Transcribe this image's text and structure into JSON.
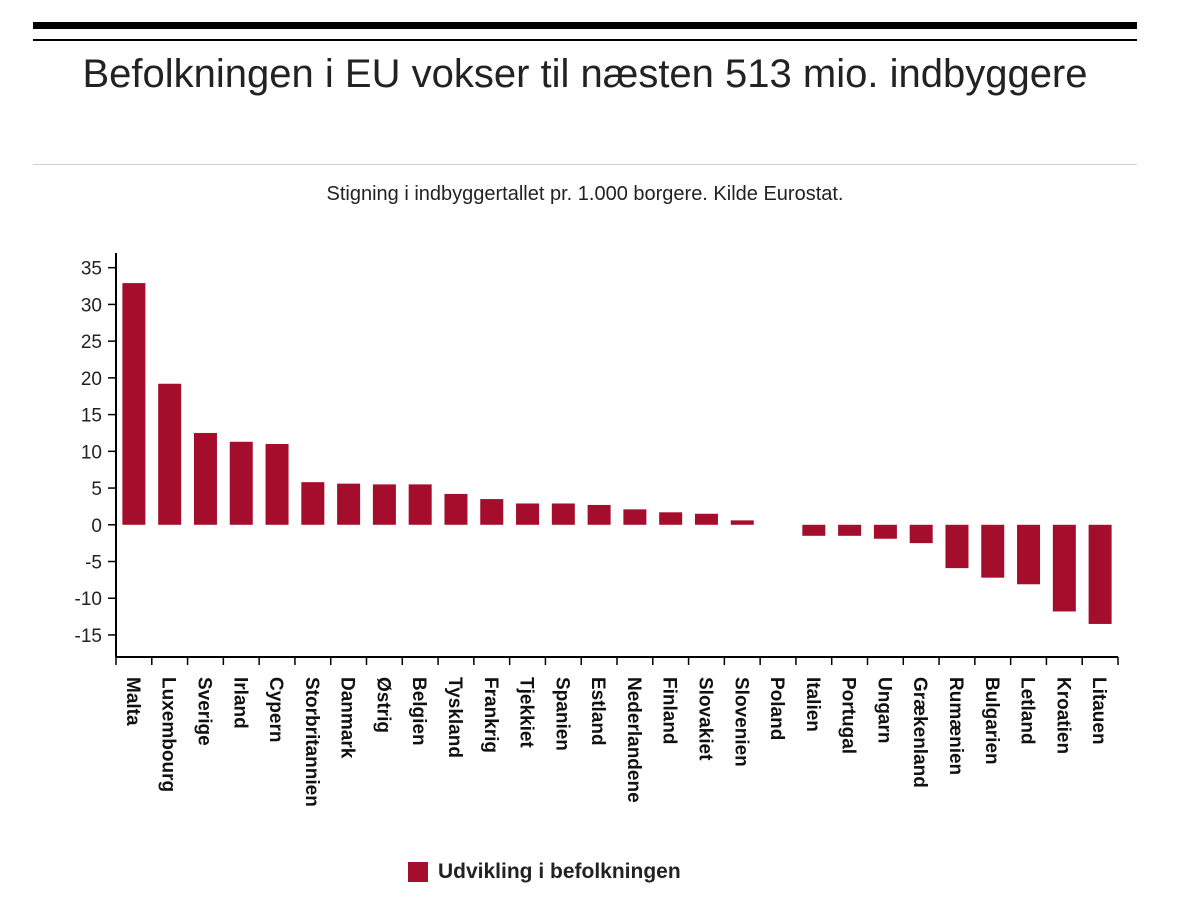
{
  "title": "Befolkningen i EU vokser til næsten 513 mio. indbyggere",
  "subtitle": "Stigning i indbyggertallet pr. 1.000 borgere. Kilde Eurostat.",
  "colors": {
    "bar": "#a50d2d",
    "axis": "#000000"
  },
  "chart_data": {
    "type": "bar",
    "title": "Befolkningen i EU vokser til næsten 513 mio. indbyggere",
    "subtitle": "Stigning i indbyggertallet pr. 1.000 borgere. Kilde Eurostat.",
    "xlabel": "",
    "ylabel": "",
    "ylim": [
      -18,
      37
    ],
    "yticks": [
      35,
      30,
      25,
      20,
      15,
      10,
      5,
      0,
      -5,
      -10,
      -15
    ],
    "grid": false,
    "legend_position": "bottom",
    "categories": [
      "Malta",
      "Luxembourg",
      "Sverige",
      "Irland",
      "Cypern",
      "Storbritannien",
      "Danmark",
      "Østrig",
      "Belgien",
      "Tyskland",
      "Frankrig",
      "Tjekkiet",
      "Spanien",
      "Estland",
      "Nederlandene",
      "Finland",
      "Slovakiet",
      "Slovenien",
      "Poland",
      "Italien",
      "Portugal",
      "Ungarn",
      "Grækenland",
      "Rumænien",
      "Bulgarien",
      "Letland",
      "Kroatien",
      "Litauen"
    ],
    "series": [
      {
        "name": "Udvikling i befolkningen",
        "values": [
          32.9,
          19.2,
          12.5,
          11.3,
          11.0,
          5.8,
          5.6,
          5.5,
          5.5,
          4.2,
          3.5,
          2.9,
          2.9,
          2.7,
          2.1,
          1.7,
          1.5,
          0.6,
          0.0,
          -1.5,
          -1.5,
          -1.9,
          -2.5,
          -5.9,
          -7.2,
          -8.1,
          -11.8,
          -13.5
        ]
      }
    ]
  }
}
